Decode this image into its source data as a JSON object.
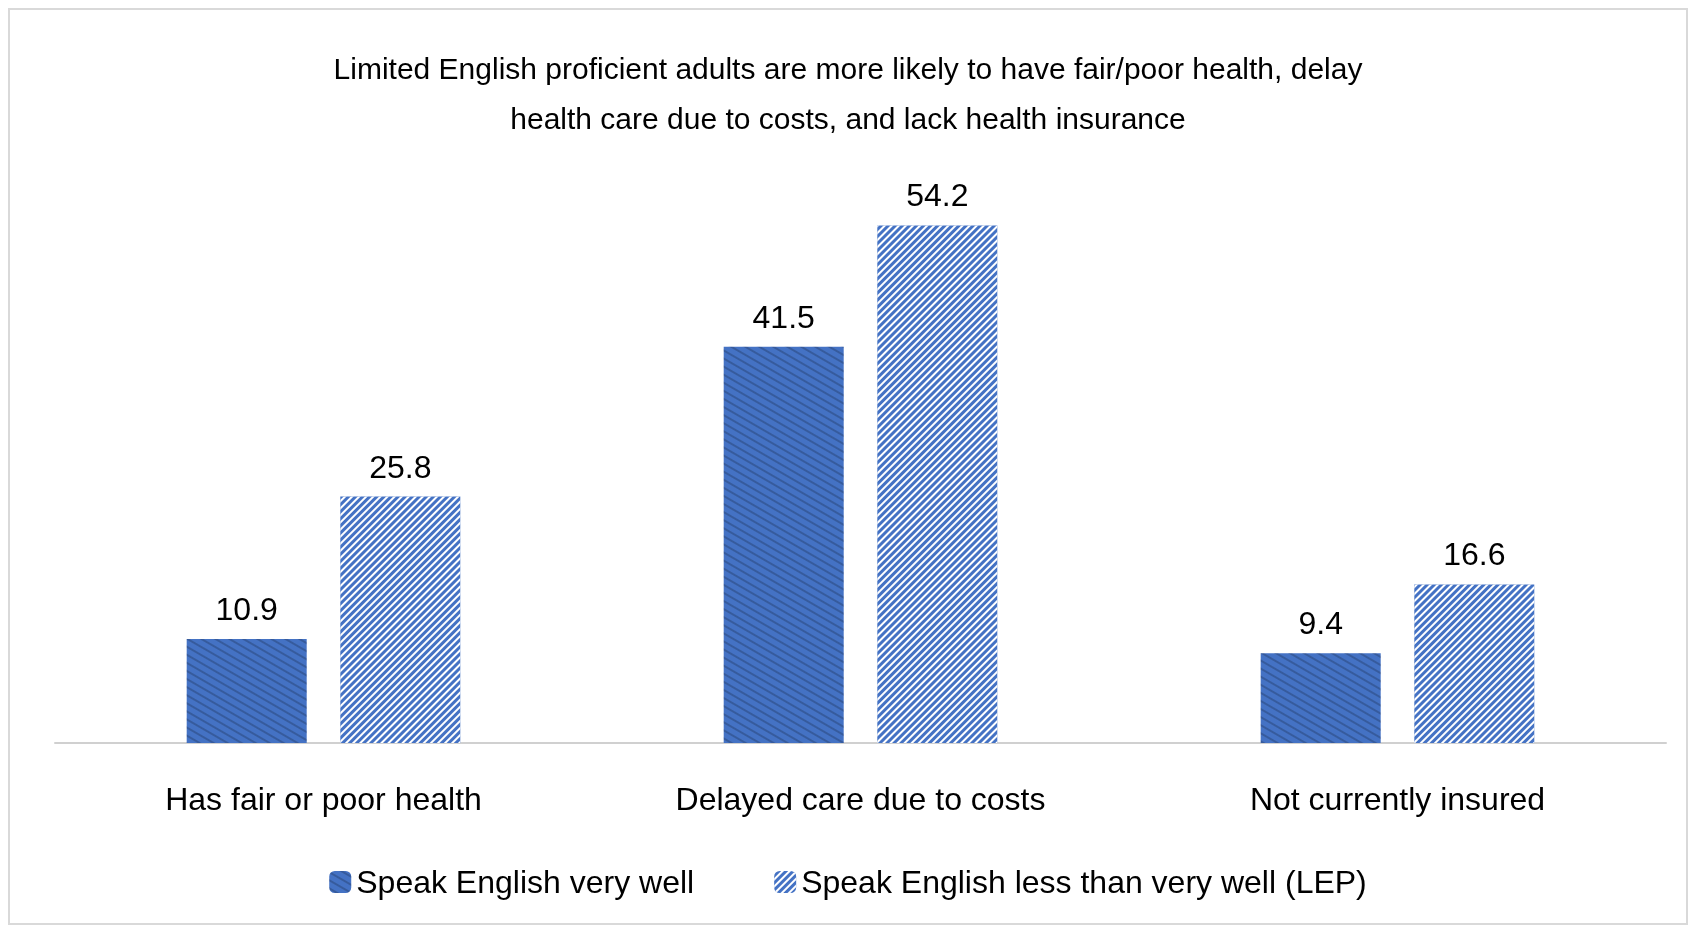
{
  "chart_data": {
    "type": "bar",
    "title": "Limited English proficient adults are more likely to have fair/poor health, delay\nhealth care due to costs, and lack health insurance",
    "categories": [
      "Has fair or poor health",
      "Delayed care due to costs",
      "Not currently insured"
    ],
    "series": [
      {
        "name": "Speak English very well",
        "color": "#4472c4",
        "values": [
          10.9,
          41.5,
          9.4
        ]
      },
      {
        "name": "Speak English less than very well (LEP)",
        "color": "#4472c4",
        "values": [
          25.8,
          54.2,
          16.6
        ]
      }
    ],
    "data_labels": true,
    "grid": false,
    "legend": "bottom"
  }
}
